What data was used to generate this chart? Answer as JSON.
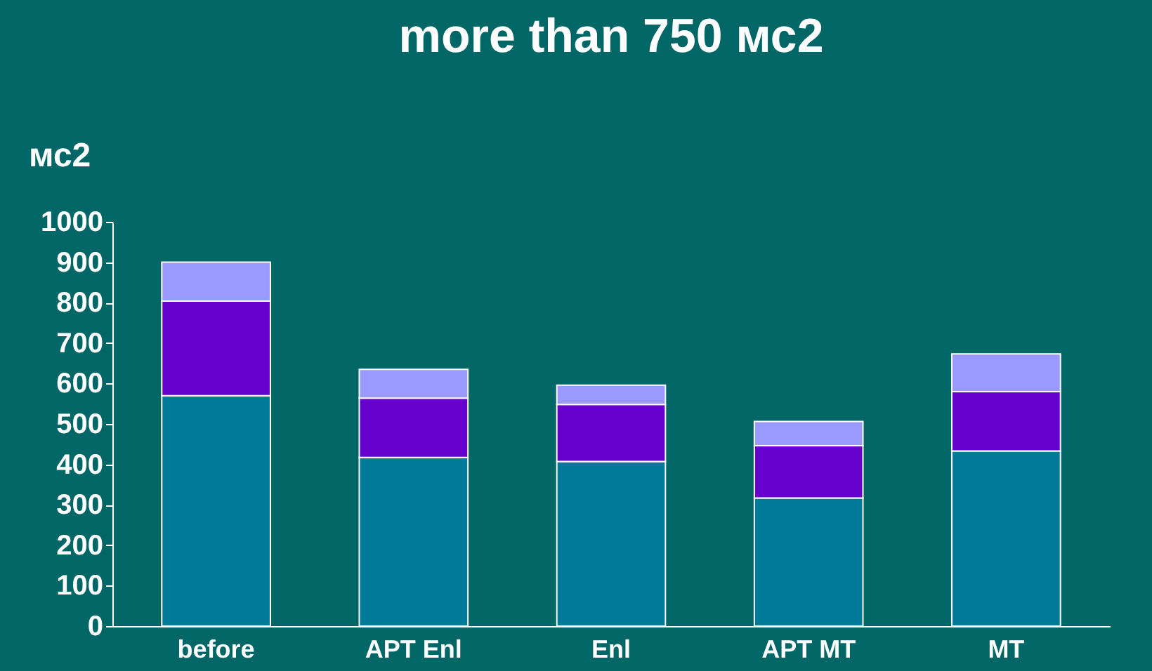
{
  "chart_data": {
    "type": "bar",
    "title": "more than 750 мс2",
    "ylabel": "мс2",
    "categories": [
      "before",
      "APT Enl",
      "Enl",
      "APT MT",
      "MT"
    ],
    "stacked": true,
    "series": [
      {
        "color": "#007a99",
        "values": [
          570,
          417,
          407,
          317,
          433
        ]
      },
      {
        "color": "#6600cc",
        "values": [
          234,
          147,
          141,
          129,
          147
        ]
      },
      {
        "color": "#9999ff",
        "values": [
          96,
          71,
          48,
          60,
          93
        ]
      }
    ],
    "ylim": [
      0,
      1000
    ],
    "yticks": [
      0,
      100,
      200,
      300,
      400,
      500,
      600,
      700,
      800,
      900,
      1000
    ],
    "grid": false,
    "legend": false
  }
}
